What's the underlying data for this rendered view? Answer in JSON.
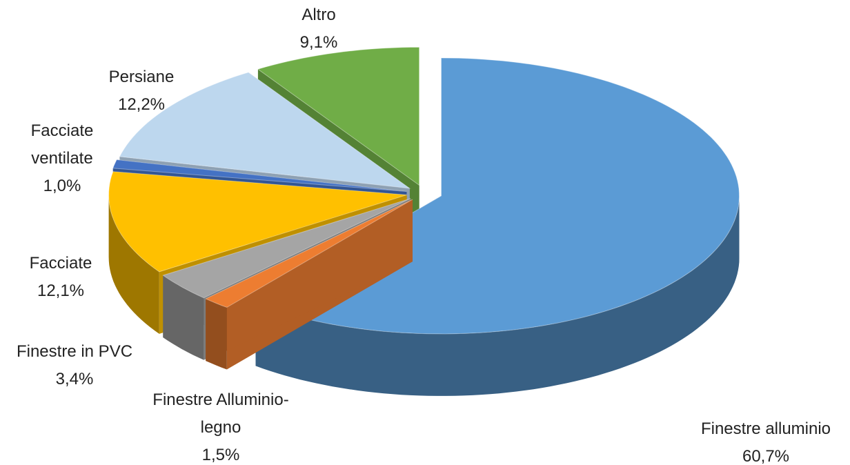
{
  "chart_data": {
    "type": "pie",
    "categories": [
      "Finestre alluminio",
      "Finestre Alluminio-legno",
      "Finestre in PVC",
      "Facciate",
      "Facciate ventilate",
      "Persiane",
      "Altro"
    ],
    "values": [
      60.7,
      1.5,
      3.4,
      12.1,
      1.0,
      12.2,
      9.1
    ],
    "value_labels": [
      "60,7%",
      "1,5%",
      "3,4%",
      "12,1%",
      "1,0%",
      "12,2%",
      "9,1%"
    ],
    "colors": [
      "#5b9bd5",
      "#ed7d31",
      "#a5a5a5",
      "#ffc000",
      "#4472c4",
      "#bdd7ee",
      "#70ad47"
    ]
  }
}
